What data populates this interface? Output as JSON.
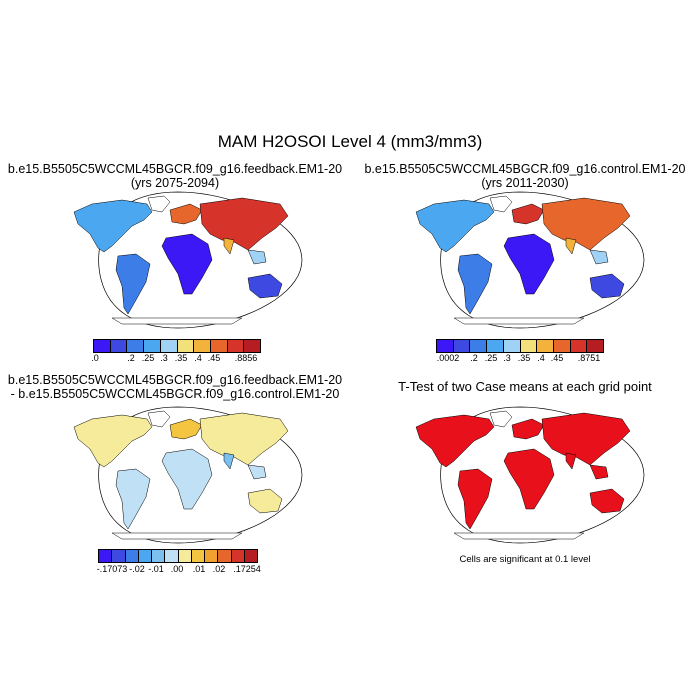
{
  "title": "MAM H2OSOI Level 4 (mm3/mm3)",
  "panels": [
    {
      "title_line1": "b.e15.B5505C5WCCML45BGCR.f09_g16.feedback.EM1-20",
      "title_line2": "(yrs 2075-2094)",
      "colorbar": {
        "colors": [
          "#3b18f5",
          "#3d49e0",
          "#3c7de8",
          "#4ba7ef",
          "#9fd2f5",
          "#f2e07a",
          "#f3b23c",
          "#e6662b",
          "#d6332a",
          "#b51d22"
        ],
        "labels": [
          ".0",
          ".2",
          ".25",
          ".3",
          ".35",
          ".4",
          ".45",
          ".8856"
        ]
      }
    },
    {
      "title_line1": "b.e15.B5505C5WCCML45BGCR.f09_g16.control.EM1-20",
      "title_line2": "(yrs 2011-2030)",
      "colorbar": {
        "colors": [
          "#3b18f5",
          "#3d49e0",
          "#3c7de8",
          "#4ba7ef",
          "#9fd2f5",
          "#f2e07a",
          "#f3b23c",
          "#e6662b",
          "#d6332a",
          "#b51d22"
        ],
        "labels": [
          ".0002",
          ".2",
          ".25",
          ".3",
          ".35",
          ".4",
          ".45",
          ".8751"
        ]
      }
    },
    {
      "title_line1": "b.e15.B5505C5WCCML45BGCR.f09_g16.feedback.EM1-20",
      "title_line2": "- b.e15.B5505C5WCCML45BGCR.f09_g16.control.EM1-20",
      "colorbar": {
        "colors": [
          "#3b18f5",
          "#3d49e0",
          "#3c7de8",
          "#4ba7ef",
          "#7cc0ef",
          "#bfe0f5",
          "#f5eb9a",
          "#f3c541",
          "#f0a12f",
          "#e6662b",
          "#d6332a",
          "#b51d22"
        ],
        "labels": [
          "-.17073",
          "-.02",
          "-.01",
          ".00",
          ".01",
          ".02",
          ".17254"
        ]
      }
    },
    {
      "title_line1": "T-Test of two Case means at each grid point",
      "note": "Cells are significant at 0.1 level",
      "fill": "#e8101a"
    }
  ]
}
